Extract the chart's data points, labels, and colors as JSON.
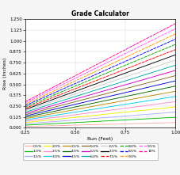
{
  "title": "Grade Calculator",
  "xlabel": "Run (Feet)",
  "ylabel": "Rise (Inches)",
  "xlim": [
    0.25,
    1.0
  ],
  "ylim": [
    0.0,
    1.25
  ],
  "xticks": [
    0.25,
    0.5,
    0.75,
    1.0
  ],
  "yticks": [
    0.0,
    0.125,
    0.25,
    0.375,
    0.5,
    0.625,
    0.75,
    0.875,
    1.0,
    1.125,
    1.25
  ],
  "grades": [
    {
      "pct": 0.5,
      "label": "0.5%",
      "color": "#ffaaaa",
      "linestyle": "-"
    },
    {
      "pct": 1.0,
      "label": "1.0%",
      "color": "#00bb00",
      "linestyle": "-"
    },
    {
      "pct": 1.5,
      "label": "1.5%",
      "color": "#aaaaff",
      "linestyle": "-"
    },
    {
      "pct": 2.0,
      "label": "2.0%",
      "color": "#eeee00",
      "linestyle": "-"
    },
    {
      "pct": 2.5,
      "label": "2.5%",
      "color": "#ff88cc",
      "linestyle": "-"
    },
    {
      "pct": 3.0,
      "label": "3.0%",
      "color": "#00ccee",
      "linestyle": "-"
    },
    {
      "pct": 3.5,
      "label": "3.5%",
      "color": "#bb8800",
      "linestyle": "-"
    },
    {
      "pct": 4.0,
      "label": "4.0%",
      "color": "#006600",
      "linestyle": "-"
    },
    {
      "pct": 4.5,
      "label": "4.5%",
      "color": "#0000cc",
      "linestyle": "-"
    },
    {
      "pct": 5.0,
      "label": "5.0%",
      "color": "#886622",
      "linestyle": "-"
    },
    {
      "pct": 5.5,
      "label": "5.5%",
      "color": "#cc00cc",
      "linestyle": "-"
    },
    {
      "pct": 6.0,
      "label": "6.0%",
      "color": "#00aaaa",
      "linestyle": "-"
    },
    {
      "pct": 6.5,
      "label": "6.5%",
      "color": "#cccccc",
      "linestyle": "-"
    },
    {
      "pct": 7.0,
      "label": "7.0%",
      "color": "#000000",
      "linestyle": "-"
    },
    {
      "pct": 7.5,
      "label": "7.5%",
      "color": "#ff0000",
      "linestyle": "--"
    },
    {
      "pct": 8.0,
      "label": "8.0%",
      "color": "#00aa00",
      "linestyle": "--"
    },
    {
      "pct": 8.5,
      "label": "8.5%",
      "color": "#0000ff",
      "linestyle": "--"
    },
    {
      "pct": 9.0,
      "label": "9.0%",
      "color": "#ff9900",
      "linestyle": "--"
    },
    {
      "pct": 9.5,
      "label": "9.5%",
      "color": "#ff55ff",
      "linestyle": "--"
    },
    {
      "pct": 10.0,
      "label": "10%",
      "color": "#ff0099",
      "linestyle": "--"
    }
  ],
  "bg_color": "#f5f5f5",
  "plot_bg": "#ffffff"
}
